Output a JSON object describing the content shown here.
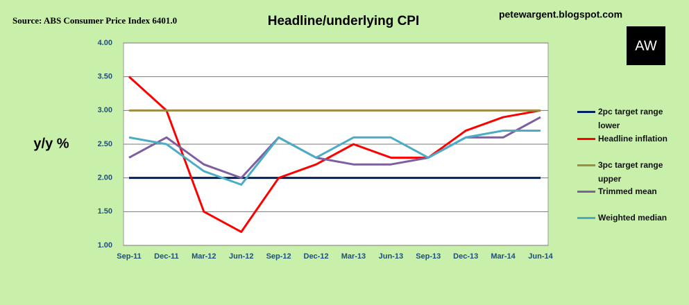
{
  "chart_data": {
    "type": "line",
    "title": "Headline/underlying CPI",
    "source": "Source: ABS Consumer Price Index 6401.0",
    "site": "petewargent.blogspot.com",
    "logo": "AW",
    "y_label": "y/y %",
    "categories": [
      "Sep-11",
      "Dec-11",
      "Mar-12",
      "Jun-12",
      "Sep-12",
      "Dec-12",
      "Mar-13",
      "Jun-13",
      "Sep-13",
      "Dec-13",
      "Mar-14",
      "Jun-14"
    ],
    "series": [
      {
        "name": "2pc target range lower",
        "color": "#002060",
        "values": [
          2.0,
          2.0,
          2.0,
          2.0,
          2.0,
          2.0,
          2.0,
          2.0,
          2.0,
          2.0,
          2.0,
          2.0
        ]
      },
      {
        "name": "Headline inflation",
        "color": "#ff0000",
        "values": [
          3.5,
          3.0,
          1.5,
          1.2,
          2.0,
          2.2,
          2.5,
          2.3,
          2.3,
          2.7,
          2.9,
          3.0
        ]
      },
      {
        "name": "3pc target range upper",
        "color": "#9c8b43",
        "values": [
          3.0,
          3.0,
          3.0,
          3.0,
          3.0,
          3.0,
          3.0,
          3.0,
          3.0,
          3.0,
          3.0,
          3.0
        ]
      },
      {
        "name": "Trimmed mean",
        "color": "#7d5fa0",
        "values": [
          2.3,
          2.6,
          2.2,
          2.0,
          2.6,
          2.3,
          2.2,
          2.2,
          2.3,
          2.6,
          2.6,
          2.9
        ]
      },
      {
        "name": "Weighted median",
        "color": "#4bacc6",
        "values": [
          2.6,
          2.5,
          2.1,
          1.9,
          2.6,
          2.3,
          2.6,
          2.6,
          2.3,
          2.6,
          2.7,
          2.7
        ]
      }
    ],
    "ylim": [
      1.0,
      4.0
    ],
    "yticks": [
      {
        "value": 1.0,
        "label": "1.00"
      },
      {
        "value": 1.5,
        "label": "1.50"
      },
      {
        "value": 2.0,
        "label": "2.00"
      },
      {
        "value": 2.5,
        "label": "2.50"
      },
      {
        "value": 3.0,
        "label": "3.00"
      },
      {
        "value": 3.5,
        "label": "3.50"
      },
      {
        "value": 4.0,
        "label": "4.00"
      }
    ],
    "grid": true,
    "legend": "right"
  }
}
